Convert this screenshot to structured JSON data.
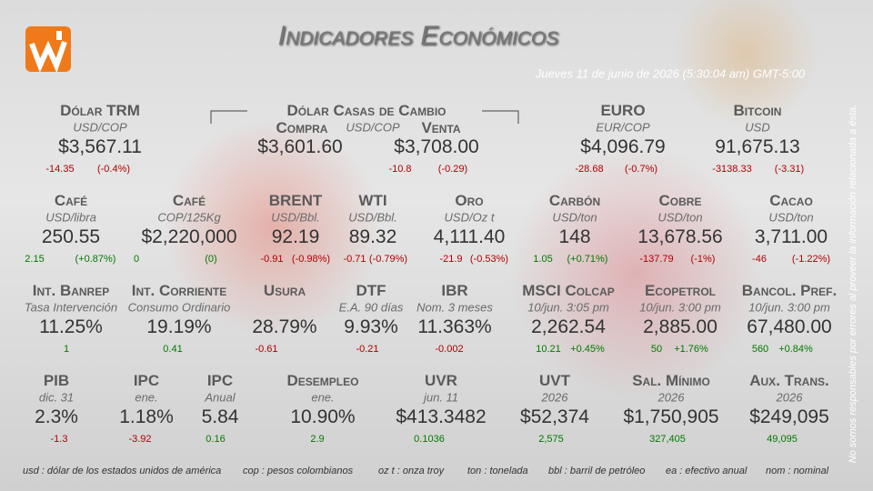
{
  "header": {
    "title": "Indicadores Económicos",
    "date": "Jueves 11 de junio de 2026 (5:30:04 am) GMT-5:00"
  },
  "disclaimer": "No somos responsables por errores al proveer la información relacionada a ésta.",
  "exchange_houses": {
    "title": "Dólar Casas de Cambio",
    "unit": "USD/COP",
    "buy": {
      "label": "Compra",
      "value": "$3,601.60"
    },
    "sell": {
      "label": "Venta",
      "value": "$3,708.00",
      "change": "-10.8",
      "pct": "(-0.29)"
    }
  },
  "indicators": [
    {
      "name": "Dólar TRM",
      "sub": "USD/COP",
      "value": "$3,567.11",
      "change": "-14.35",
      "pct": "(-0.4%)"
    },
    {
      "name": "EURO",
      "sub": "EUR/COP",
      "value": "$4,096.79",
      "change": "-28.68",
      "pct": "(-0.7%)"
    },
    {
      "name": "Bitcoin",
      "sub": "USD",
      "value": "91,675.13",
      "change": "-3138.33",
      "pct": "(-3.31)"
    },
    {
      "name": "Café",
      "sub": "USD/libra",
      "value": "250.55",
      "change": "2.15",
      "pct": "(+0.87%)"
    },
    {
      "name": "Café",
      "sub": "COP/125Kg",
      "value": "$2,220,000",
      "change": "0",
      "pct": "(0)"
    },
    {
      "name": "BRENT",
      "sub": "USD/Bbl.",
      "value": "92.19",
      "change": "-0.91",
      "pct": "(-0.98%)"
    },
    {
      "name": "WTI",
      "sub": "USD/Bbl.",
      "value": "89.32",
      "change": "-0.71",
      "pct": "(-0.79%)"
    },
    {
      "name": "Oro",
      "sub": "USD/Oz t",
      "value": "4,111.40",
      "change": "-21.9",
      "pct": "(-0.53%)"
    },
    {
      "name": "Carbón",
      "sub": "USD/ton",
      "value": "148",
      "change": "1.05",
      "pct": "(+0.71%)"
    },
    {
      "name": "Cobre",
      "sub": "USD/ton",
      "value": "13,678.56",
      "change": "-137.79",
      "pct": "(-1%)"
    },
    {
      "name": "Cacao",
      "sub": "USD/ton",
      "value": "3,711.00",
      "change": "-46",
      "pct": "(-1.22%)"
    },
    {
      "name": "Int. Banrep",
      "sub": "Tasa Intervención",
      "value": "11.25%",
      "change": "1"
    },
    {
      "name": "Int. Corriente",
      "sub": "Consumo Ordinario",
      "value": "19.19%",
      "change": "0.41"
    },
    {
      "name": "Usura",
      "value": "28.79%",
      "change": "-0.61"
    },
    {
      "name": "DTF",
      "sub": "E.A. 90 días",
      "value": "9.93%",
      "change": "-0.21"
    },
    {
      "name": "IBR",
      "sub": "Nom. 3 meses",
      "value": "11.363%",
      "change": "-0.002"
    },
    {
      "name": "MSCI Colcap",
      "sub": "10/jun. 3:05 pm",
      "value": "2,262.54",
      "change": "10.21",
      "pct": "+0.45%"
    },
    {
      "name": "Ecopetrol",
      "sub": "10/jun. 3:00 pm",
      "value": "2,885.00",
      "change": "50",
      "pct": "+1.76%"
    },
    {
      "name": "Bancol. Pref.",
      "sub": "10/jun. 3:00 pm",
      "value": "67,480.00",
      "change": "560",
      "pct": "+0.84%"
    },
    {
      "name": "PIB",
      "sub": "dic. 31",
      "value": "2.3%",
      "change": "-1.3"
    },
    {
      "name": "IPC",
      "sub": "ene.",
      "value": "1.18%",
      "change": "-3.92"
    },
    {
      "name": "IPC",
      "sub": "Anual",
      "value": "5.84",
      "change": "0.16"
    },
    {
      "name": "Desempleo",
      "sub": "ene.",
      "value": "10.90%",
      "change": "2.9"
    },
    {
      "name": "UVR",
      "sub": "jun. 11",
      "value": "$413.3482",
      "change": "0.1036"
    },
    {
      "name": "UVT",
      "sub": "2026",
      "value": "$52,374",
      "change": "2,575"
    },
    {
      "name": "Sal. Mínimo",
      "sub": "2026",
      "value": "$1,750,905",
      "change": "327,405"
    },
    {
      "name": "Aux. Trans.",
      "sub": "2026",
      "value": "$249,095",
      "change": "49,095"
    }
  ],
  "glossary": [
    "usd : dólar de los estados unidos de américa",
    "cop : pesos colombianos",
    "oz t : onza troy",
    "ton : tonelada",
    "bbl : barril de petróleo",
    "ea : efectivo anual",
    "nom : nominal"
  ]
}
